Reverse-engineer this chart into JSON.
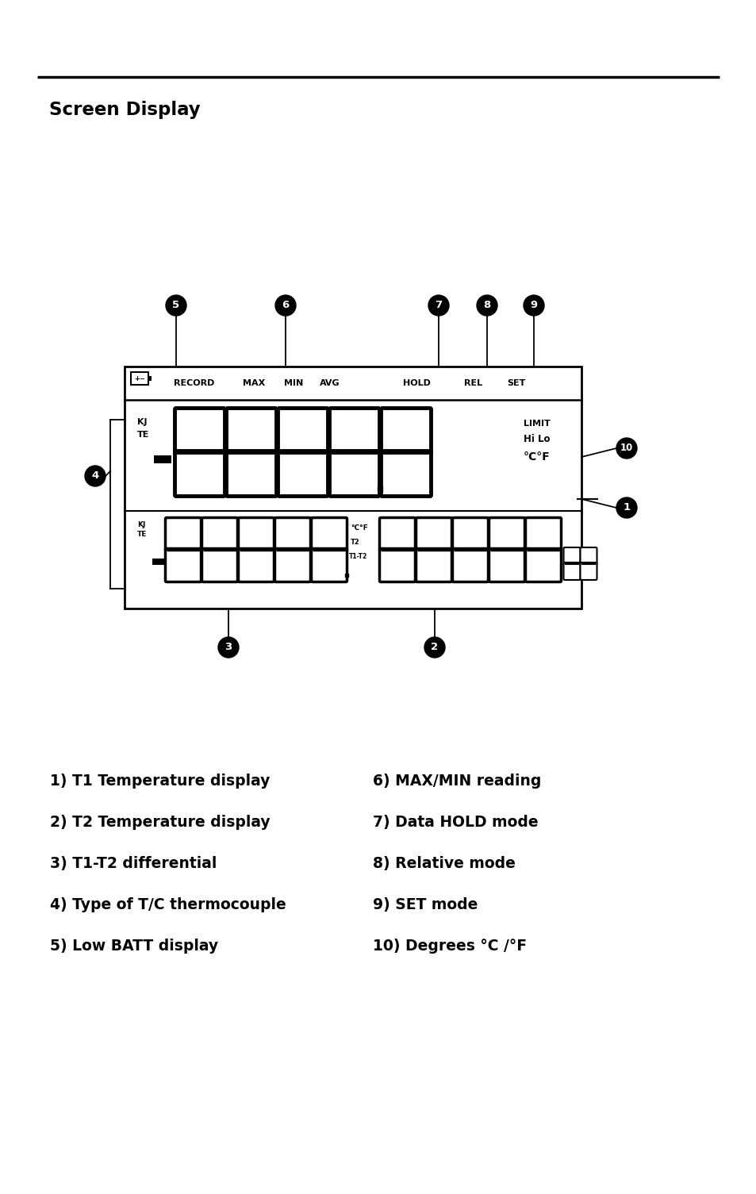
{
  "title": "Screen Display",
  "bg_color": "#ffffff",
  "text_color": "#000000",
  "line_items_left": [
    "1) T1 Temperature display",
    "2) T2 Temperature display",
    "3) T1-T2 differential",
    "4) Type of T/C thermocouple",
    "5) Low BATT display"
  ],
  "line_items_right": [
    "6) MAX/MIN reading",
    "7) Data HOLD mode",
    "8) Relative mode",
    "9) SET mode",
    "10) Degrees °C /°F"
  ]
}
